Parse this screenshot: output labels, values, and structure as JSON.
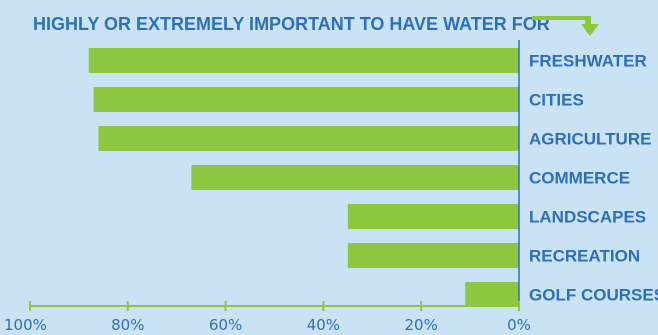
{
  "chart_data": {
    "type": "bar",
    "orientation": "horizontal",
    "title": "HIGHLY OR EXTREMELY IMPORTANT TO HAVE WATER FOR",
    "categories": [
      "FRESHWATER",
      "CITIES",
      "AGRICULTURE",
      "COMMERCE",
      "LANDSCAPES",
      "RECREATION",
      "GOLF COURSES"
    ],
    "values": [
      88,
      87,
      86,
      67,
      35,
      35,
      11
    ],
    "value_unit": "%",
    "xlim": [
      0,
      100
    ],
    "x_reversed": true,
    "xticks": [
      "100%",
      "80%",
      "60%",
      "40%",
      "20%",
      "0%"
    ],
    "xtick_values": [
      100,
      80,
      60,
      40,
      20,
      0
    ],
    "colors": {
      "bar": "#8dc63f",
      "text": "#2e6fb7",
      "axis": "#8dc63f",
      "background": "#c9e3f4"
    }
  }
}
